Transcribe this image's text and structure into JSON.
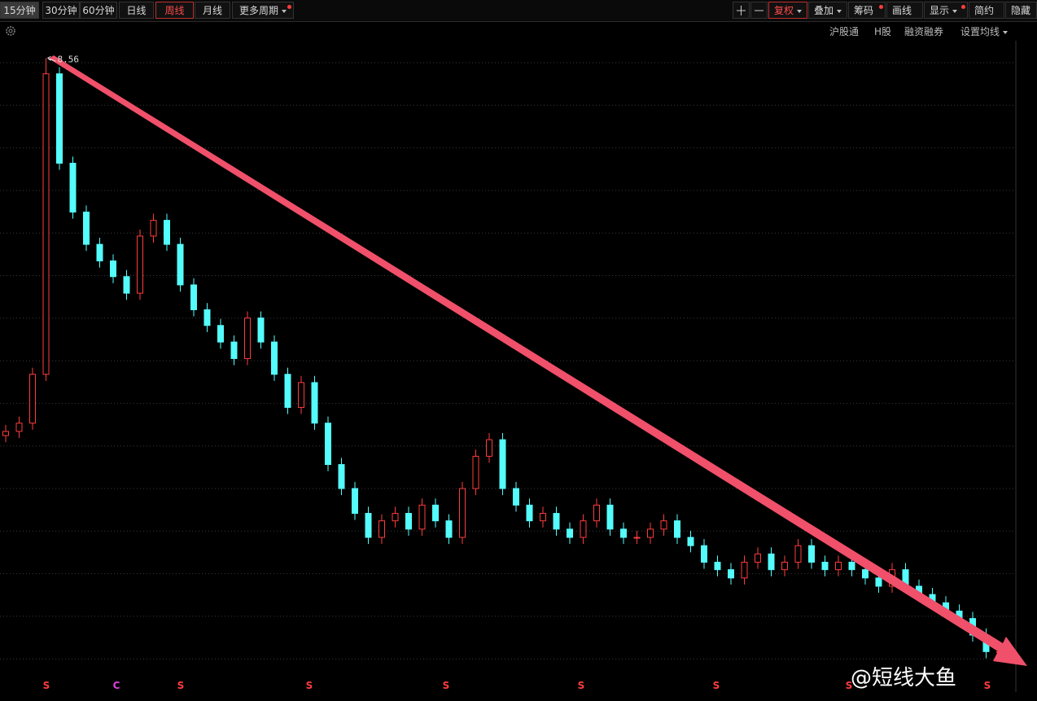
{
  "toolbar": {
    "left": [
      "15分钟",
      "30分钟",
      "60分钟",
      "日线",
      "周线",
      "月线",
      "更多周期"
    ],
    "right": [
      "复权",
      "叠加",
      "筹码",
      "画线",
      "显示",
      "简约",
      "隐藏"
    ]
  },
  "subbar": [
    "沪股通",
    "H股",
    "融资融券",
    "设置均线"
  ],
  "watermark": "@短线大鱼",
  "chart_data": {
    "type": "candlestick",
    "ylim": [
      1.0,
      8.77
    ],
    "up_color": "#ff3c3c",
    "down_color": "#54fcfc",
    "open": [
      4.0,
      4.05,
      4.15,
      4.74,
      8.37,
      7.29,
      6.7,
      6.31,
      6.11,
      5.92,
      5.72,
      6.41,
      6.6,
      6.31,
      5.82,
      5.52,
      5.33,
      5.13,
      4.93,
      5.42,
      5.13,
      4.74,
      4.34,
      4.64,
      4.15,
      3.65,
      3.36,
      3.06,
      2.77,
      2.97,
      3.06,
      2.87,
      3.16,
      2.97,
      2.77,
      3.36,
      3.75,
      3.95,
      3.36,
      3.16,
      2.97,
      3.06,
      2.87,
      2.77,
      2.97,
      3.16,
      2.87,
      2.77,
      2.77,
      2.87,
      2.97,
      2.77,
      2.67,
      2.47,
      2.38,
      2.28,
      2.47,
      2.57,
      2.38,
      2.47,
      2.67,
      2.47,
      2.38,
      2.47,
      2.38,
      2.28,
      2.18,
      2.38,
      2.18,
      2.08,
      1.98,
      1.88,
      1.79,
      1.59,
      1.39
    ],
    "high": [
      4.13,
      4.23,
      4.82,
      8.56,
      8.45,
      7.37,
      6.78,
      6.39,
      6.19,
      6.0,
      6.49,
      6.68,
      6.68,
      6.39,
      5.9,
      5.6,
      5.41,
      5.21,
      5.5,
      5.5,
      5.21,
      4.82,
      4.72,
      4.72,
      4.23,
      3.73,
      3.44,
      3.14,
      3.05,
      3.14,
      3.14,
      3.24,
      3.24,
      3.05,
      3.44,
      3.83,
      4.03,
      4.03,
      3.44,
      3.24,
      3.14,
      3.14,
      2.95,
      3.05,
      3.24,
      3.24,
      2.95,
      2.85,
      2.95,
      3.05,
      3.05,
      2.85,
      2.75,
      2.55,
      2.46,
      2.55,
      2.65,
      2.65,
      2.55,
      2.75,
      2.75,
      2.55,
      2.55,
      2.55,
      2.46,
      2.36,
      2.46,
      2.46,
      2.26,
      2.16,
      2.06,
      1.96,
      1.87,
      1.67,
      1.47
    ],
    "low": [
      3.92,
      3.97,
      4.07,
      4.66,
      7.21,
      6.62,
      6.23,
      6.03,
      5.84,
      5.64,
      5.64,
      6.33,
      6.23,
      5.74,
      5.44,
      5.25,
      5.05,
      4.85,
      4.85,
      5.05,
      4.66,
      4.26,
      4.26,
      4.07,
      3.57,
      3.28,
      2.98,
      2.69,
      2.69,
      2.89,
      2.79,
      2.79,
      2.89,
      2.69,
      2.69,
      3.28,
      3.67,
      3.28,
      3.08,
      2.89,
      2.89,
      2.79,
      2.69,
      2.69,
      2.89,
      2.79,
      2.69,
      2.69,
      2.69,
      2.79,
      2.69,
      2.59,
      2.39,
      2.3,
      2.2,
      2.2,
      2.39,
      2.3,
      2.3,
      2.39,
      2.39,
      2.3,
      2.3,
      2.3,
      2.2,
      2.1,
      2.1,
      2.1,
      2.0,
      1.9,
      1.8,
      1.71,
      1.51,
      1.31,
      1.31
    ],
    "close": [
      4.05,
      4.15,
      4.74,
      8.37,
      7.29,
      6.7,
      6.31,
      6.11,
      5.92,
      5.72,
      6.41,
      6.6,
      6.31,
      5.82,
      5.52,
      5.33,
      5.13,
      4.93,
      5.42,
      5.13,
      4.74,
      4.34,
      4.64,
      4.15,
      3.65,
      3.36,
      3.06,
      2.77,
      2.97,
      3.06,
      2.87,
      3.16,
      2.97,
      2.77,
      3.36,
      3.75,
      3.95,
      3.36,
      3.16,
      2.97,
      3.06,
      2.87,
      2.77,
      2.97,
      3.16,
      2.87,
      2.77,
      2.77,
      2.87,
      2.97,
      2.77,
      2.67,
      2.47,
      2.38,
      2.28,
      2.47,
      2.57,
      2.38,
      2.47,
      2.67,
      2.47,
      2.38,
      2.47,
      2.38,
      2.28,
      2.18,
      2.38,
      2.18,
      2.08,
      1.98,
      1.88,
      1.79,
      1.59,
      1.39,
      1.39
    ],
    "event_markers": [
      "S",
      "C",
      "S",
      "S",
      "S",
      "S",
      "S",
      "S",
      "S"
    ]
  }
}
